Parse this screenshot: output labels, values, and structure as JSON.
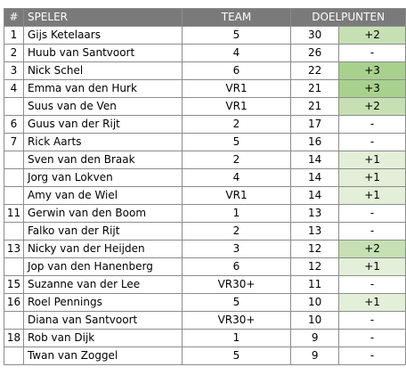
{
  "header": {
    "rank": "#",
    "player": "SPELER",
    "team": "TEAM",
    "goals": "DOELPUNTEN"
  },
  "rows": [
    {
      "rank": "1",
      "name": "Gijs Ketelaars",
      "team": "5",
      "goals": "30",
      "delta": "+2"
    },
    {
      "rank": "2",
      "name": "Huub van Santvoort",
      "team": "4",
      "goals": "26",
      "delta": "-"
    },
    {
      "rank": "3",
      "name": "Nick Schel",
      "team": "6",
      "goals": "22",
      "delta": "+3"
    },
    {
      "rank": "4",
      "name": "Emma van den Hurk",
      "team": "VR1",
      "goals": "21",
      "delta": "+3"
    },
    {
      "rank": "",
      "name": "Suus van de Ven",
      "team": "VR1",
      "goals": "21",
      "delta": "+2"
    },
    {
      "rank": "6",
      "name": "Guus van der Rijt",
      "team": "2",
      "goals": "17",
      "delta": "-"
    },
    {
      "rank": "7",
      "name": "Rick Aarts",
      "team": "5",
      "goals": "16",
      "delta": "-"
    },
    {
      "rank": "",
      "name": "Sven van den Braak",
      "team": "2",
      "goals": "14",
      "delta": "+1"
    },
    {
      "rank": "",
      "name": "Jorg van Lokven",
      "team": "4",
      "goals": "14",
      "delta": "+1"
    },
    {
      "rank": "",
      "name": "Amy van de Wiel",
      "team": "VR1",
      "goals": "14",
      "delta": "+1"
    },
    {
      "rank": "11",
      "name": "Gerwin van den Boom",
      "team": "1",
      "goals": "13",
      "delta": "-"
    },
    {
      "rank": "",
      "name": "Falko van der Rijt",
      "team": "2",
      "goals": "13",
      "delta": "-"
    },
    {
      "rank": "13",
      "name": "Nicky van der Heijden",
      "team": "3",
      "goals": "12",
      "delta": "+2"
    },
    {
      "rank": "",
      "name": "Jop van den Hanenberg",
      "team": "6",
      "goals": "12",
      "delta": "+1"
    },
    {
      "rank": "15",
      "name": "Suzanne van der Lee",
      "team": "VR30+",
      "goals": "11",
      "delta": "-"
    },
    {
      "rank": "16",
      "name": "Roel Pennings",
      "team": "5",
      "goals": "10",
      "delta": "+1"
    },
    {
      "rank": "",
      "name": "Diana van Santvoort",
      "team": "VR30+",
      "goals": "10",
      "delta": "-"
    },
    {
      "rank": "18",
      "name": "Rob van Dijk",
      "team": "1",
      "goals": "9",
      "delta": "-"
    },
    {
      "rank": "",
      "name": "Twan van Zoggel",
      "team": "5",
      "goals": "9",
      "delta": "-"
    }
  ],
  "colors": {
    "header_bg": "#7a7a7a",
    "header_text": "#ffffff",
    "border": "#8c8c8c",
    "plus1": "#e3efd8",
    "plus2": "#c6e0b4",
    "plus3": "#a9d18e"
  }
}
